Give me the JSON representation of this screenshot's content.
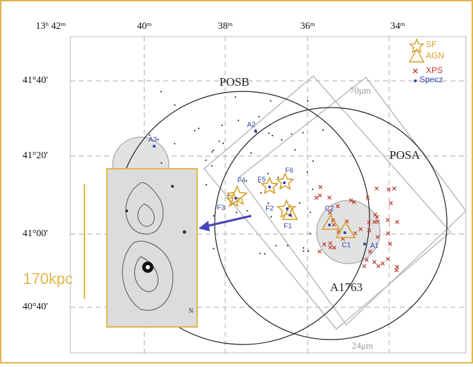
{
  "axes": {
    "ra_ticks": [
      "13ʰ 42ᵐ",
      "40ᵐ",
      "38ᵐ",
      "36ᵐ",
      "34ᵐ"
    ],
    "dec_ticks": [
      "41°40'",
      "41°20'",
      "41°00'",
      "40°40'"
    ]
  },
  "regions": {
    "posb": "POSB",
    "posa": "POSA",
    "cluster": "A1763",
    "mips70": "70μm",
    "mips24": "24μm"
  },
  "sources": {
    "f1": "F1",
    "f2": "F2",
    "f3": "F3",
    "f4": "F4",
    "f5": "F5",
    "f6": "F6",
    "c1": "C1",
    "c2": "C2",
    "a1": "A1",
    "a2": "A2",
    "a3": "A3"
  },
  "legend": {
    "sf": "SF",
    "agn": "AGN",
    "xps": "XPS",
    "specz": "Specz"
  },
  "inset": {
    "scale_bar": "170kpc",
    "north": "N"
  }
}
